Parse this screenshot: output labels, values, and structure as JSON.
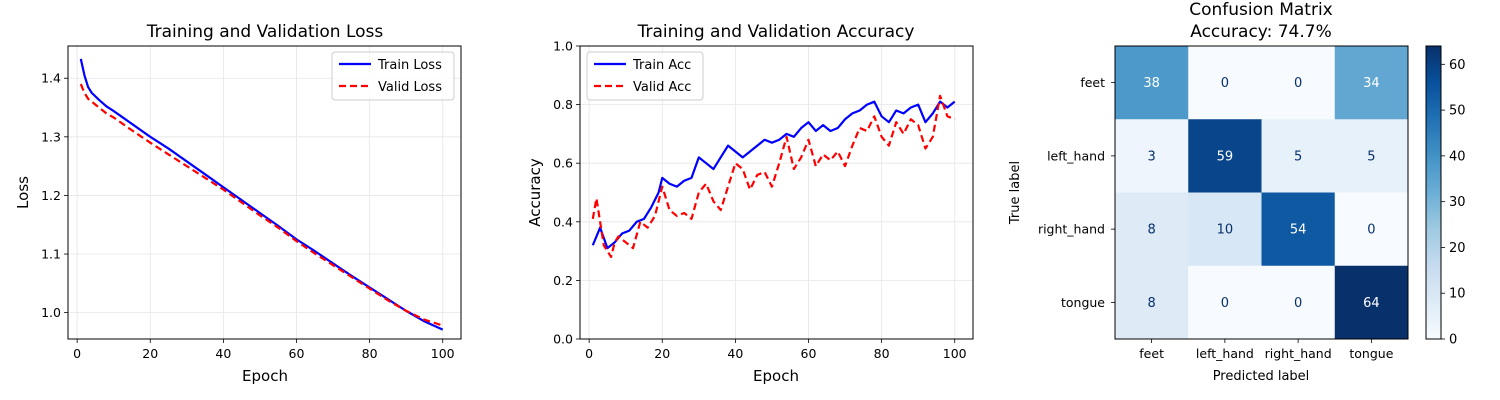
{
  "chart_data": [
    {
      "type": "line",
      "title": "Training and Validation Loss",
      "xlabel": "Epoch",
      "ylabel": "Loss",
      "xlim": [
        -2.5,
        105
      ],
      "ylim": [
        0.955,
        1.455
      ],
      "xticks": [
        0,
        20,
        40,
        60,
        80,
        100
      ],
      "yticks": [
        1.0,
        1.1,
        1.2,
        1.3,
        1.4
      ],
      "ytick_labels": [
        "1.0",
        "1.1",
        "1.2",
        "1.3",
        "1.4"
      ],
      "grid": true,
      "legend": "upper right",
      "series": [
        {
          "name": "Train Loss",
          "color": "#0000ff",
          "style": "solid",
          "x": [
            1,
            2,
            3,
            4,
            6,
            8,
            10,
            15,
            20,
            25,
            30,
            35,
            40,
            45,
            50,
            55,
            60,
            65,
            70,
            75,
            80,
            85,
            90,
            95,
            100
          ],
          "y": [
            1.433,
            1.405,
            1.385,
            1.375,
            1.363,
            1.352,
            1.344,
            1.322,
            1.3,
            1.28,
            1.258,
            1.236,
            1.214,
            1.192,
            1.17,
            1.148,
            1.125,
            1.105,
            1.084,
            1.063,
            1.043,
            1.023,
            1.003,
            0.985,
            0.971
          ]
        },
        {
          "name": "Valid Loss",
          "color": "#ff0000",
          "style": "dashed",
          "x": [
            1,
            2,
            3,
            4,
            6,
            8,
            10,
            15,
            20,
            25,
            30,
            35,
            40,
            45,
            50,
            55,
            60,
            65,
            70,
            75,
            80,
            85,
            90,
            95,
            100
          ],
          "y": [
            1.39,
            1.375,
            1.365,
            1.36,
            1.35,
            1.34,
            1.333,
            1.311,
            1.29,
            1.27,
            1.25,
            1.23,
            1.21,
            1.188,
            1.166,
            1.145,
            1.122,
            1.101,
            1.081,
            1.061,
            1.041,
            1.021,
            1.003,
            0.988,
            0.978
          ]
        }
      ]
    },
    {
      "type": "line",
      "title": "Training and Validation Accuracy",
      "xlabel": "Epoch",
      "ylabel": "Accuracy",
      "xlim": [
        -2.5,
        105
      ],
      "ylim": [
        0.0,
        1.0
      ],
      "xticks": [
        0,
        20,
        40,
        60,
        80,
        100
      ],
      "yticks": [
        0.0,
        0.2,
        0.4,
        0.6,
        0.8,
        1.0
      ],
      "ytick_labels": [
        "0.0",
        "0.2",
        "0.4",
        "0.6",
        "0.8",
        "1.0"
      ],
      "grid": true,
      "legend": "upper left",
      "series": [
        {
          "name": "Train Acc",
          "color": "#0000ff",
          "style": "solid",
          "x": [
            1,
            3,
            5,
            7,
            9,
            11,
            13,
            15,
            17,
            19,
            20,
            22,
            24,
            26,
            28,
            30,
            32,
            34,
            36,
            38,
            40,
            42,
            44,
            46,
            48,
            50,
            52,
            54,
            56,
            58,
            60,
            62,
            64,
            66,
            68,
            70,
            72,
            74,
            76,
            78,
            80,
            82,
            84,
            86,
            88,
            90,
            92,
            94,
            96,
            98,
            100
          ],
          "y": [
            0.32,
            0.38,
            0.31,
            0.33,
            0.36,
            0.37,
            0.4,
            0.41,
            0.45,
            0.5,
            0.55,
            0.53,
            0.52,
            0.54,
            0.55,
            0.62,
            0.6,
            0.58,
            0.62,
            0.66,
            0.64,
            0.62,
            0.64,
            0.66,
            0.68,
            0.67,
            0.68,
            0.7,
            0.69,
            0.72,
            0.74,
            0.71,
            0.73,
            0.71,
            0.72,
            0.75,
            0.77,
            0.78,
            0.8,
            0.81,
            0.76,
            0.74,
            0.78,
            0.77,
            0.79,
            0.8,
            0.74,
            0.77,
            0.81,
            0.79,
            0.81
          ]
        },
        {
          "name": "Valid Acc",
          "color": "#ff0000",
          "style": "dashed",
          "x": [
            1,
            2,
            3,
            4,
            5,
            6,
            7,
            8,
            10,
            12,
            14,
            16,
            18,
            20,
            22,
            24,
            26,
            28,
            30,
            32,
            34,
            36,
            38,
            40,
            42,
            44,
            46,
            48,
            50,
            52,
            54,
            56,
            58,
            60,
            62,
            64,
            66,
            68,
            70,
            72,
            74,
            76,
            78,
            80,
            82,
            84,
            86,
            88,
            90,
            92,
            94,
            96,
            98,
            100
          ],
          "y": [
            0.41,
            0.48,
            0.4,
            0.32,
            0.3,
            0.28,
            0.33,
            0.35,
            0.33,
            0.31,
            0.4,
            0.38,
            0.42,
            0.52,
            0.44,
            0.42,
            0.43,
            0.41,
            0.5,
            0.53,
            0.47,
            0.44,
            0.52,
            0.6,
            0.58,
            0.51,
            0.56,
            0.57,
            0.52,
            0.6,
            0.69,
            0.58,
            0.62,
            0.68,
            0.59,
            0.63,
            0.61,
            0.64,
            0.59,
            0.66,
            0.72,
            0.71,
            0.76,
            0.69,
            0.66,
            0.74,
            0.7,
            0.75,
            0.73,
            0.65,
            0.69,
            0.83,
            0.76,
            0.75
          ]
        }
      ]
    },
    {
      "type": "heatmap",
      "title": "Confusion Matrix",
      "subtitle": "Accuracy: 74.7%",
      "xlabel": "Predicted label",
      "ylabel": "True label",
      "row_labels": [
        "feet",
        "left_hand",
        "right_hand",
        "tongue"
      ],
      "col_labels": [
        "feet",
        "left_hand",
        "right_hand",
        "tongue"
      ],
      "values": [
        [
          38,
          0,
          0,
          34
        ],
        [
          3,
          59,
          5,
          5
        ],
        [
          8,
          10,
          54,
          0
        ],
        [
          8,
          0,
          0,
          64
        ]
      ],
      "colormap": "Blues",
      "color_range": [
        0,
        64
      ],
      "colorbar_ticks": [
        0,
        10,
        20,
        30,
        40,
        50,
        60
      ]
    }
  ]
}
